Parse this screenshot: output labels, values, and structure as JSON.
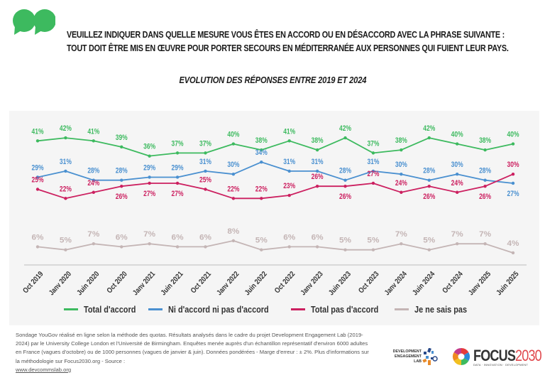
{
  "header": {
    "question_line1": "VEUILLEZ INDIQUER DANS QUELLE MESURE VOUS ÊTES EN ACCORD OU EN DÉSACCORD AVEC LA PHRASE SUIVANTE  :",
    "question_line2": "TOUT DOIT ÊTRE MIS EN ŒUVRE POUR PORTER SECOURS EN MÉDITERRANÉE AUX PERSONNES QUI FUIENT LEUR PAYS.",
    "subtitle": "EVOLUTION DES RÉPONSES ENTRE 2019 ET 2024",
    "quote_icon": "quote-marks-icon",
    "accent_color": "#3dba5f"
  },
  "chart_data": {
    "type": "line",
    "title": "EVOLUTION DES RÉPONSES ENTRE 2019 ET 2024",
    "xlabel": "",
    "ylabel": "",
    "ylim": [
      0,
      45
    ],
    "grid": false,
    "legend_position": "bottom",
    "value_suffix": "%",
    "x": [
      "Oct 2019",
      "Janv 2020",
      "Juin 2020",
      "Oct 2020",
      "Janv 2021",
      "Juin 2021",
      "Oct 2021",
      "Janv 2022",
      "Juin 2022",
      "Oct 2022",
      "Janv 2023",
      "Juin 2023",
      "Oct 2023",
      "Janv 2024",
      "Juin 2024",
      "Oct 2024",
      "Janv 2025",
      "Juin 2025"
    ],
    "series": [
      {
        "name": "Total d'accord",
        "color": "#3dba5f",
        "values": [
          41,
          42,
          41,
          39,
          36,
          37,
          37,
          40,
          38,
          41,
          38,
          42,
          37,
          38,
          42,
          40,
          38,
          40
        ],
        "label_side": [
          "a",
          "a",
          "a",
          "a",
          "a",
          "a",
          "a",
          "a",
          "a",
          "a",
          "a",
          "a",
          "a",
          "a",
          "a",
          "a",
          "a",
          "a"
        ]
      },
      {
        "name": "Ni d'accord ni pas d'accord",
        "color": "#4a90d0",
        "values": [
          29,
          31,
          28,
          28,
          29,
          29,
          31,
          30,
          34,
          31,
          31,
          28,
          31,
          30,
          28,
          30,
          28,
          27
        ],
        "label_side": [
          "a",
          "a",
          "a",
          "a",
          "a",
          "a",
          "a",
          "a",
          "a",
          "a",
          "a",
          "a",
          "a",
          "a",
          "a",
          "a",
          "a",
          "b"
        ]
      },
      {
        "name": "Total pas d'accord",
        "color": "#cc2060",
        "values": [
          25,
          22,
          24,
          26,
          27,
          27,
          25,
          22,
          22,
          23,
          26,
          26,
          27,
          24,
          26,
          24,
          26,
          30
        ],
        "label_side": [
          "a",
          "a",
          "a",
          "b",
          "b",
          "b",
          "a",
          "a",
          "a",
          "a",
          "a",
          "b",
          "a",
          "a",
          "b",
          "a",
          "b",
          "a"
        ]
      },
      {
        "name": "Je ne sais pas",
        "color": "#c4b5b5",
        "values": [
          6,
          5,
          7,
          6,
          7,
          6,
          6,
          8,
          5,
          6,
          6,
          5,
          5,
          7,
          5,
          7,
          7,
          4
        ],
        "label_side": [
          "a",
          "a",
          "a",
          "a",
          "a",
          "a",
          "a",
          "a",
          "a",
          "a",
          "a",
          "a",
          "a",
          "a",
          "a",
          "a",
          "a",
          "a"
        ]
      }
    ]
  },
  "footer": {
    "note": "Sondage YouGov réalisé en ligne selon la méthode des quotas. Résultats analysés dans le cadre du projet Development Engagement Lab (2019-2024) par le University College London et l'Université de Birmingham. Enquêtes menée auprès d'un échantillon représentatif d'environ 6000 adultes en France (vagues d'octobre) ou de 1000 personnes (vagues de janvier & juin). Données pondérées - Marge d'erreur : ± 2%. Plus d'informations sur la méthodologie sur Focus2030.org - Source :",
    "link": "www.devcommslab.org",
    "logo_del_line1": "DEVELOPMENT",
    "logo_del_line2": "ENGAGEMENT",
    "logo_del_line3": "LAB",
    "logo_focus_word": "FOCUS",
    "logo_focus_year": "2030",
    "logo_focus_tagline": "DATA · INNOVATION · DEVELOPMENT"
  }
}
